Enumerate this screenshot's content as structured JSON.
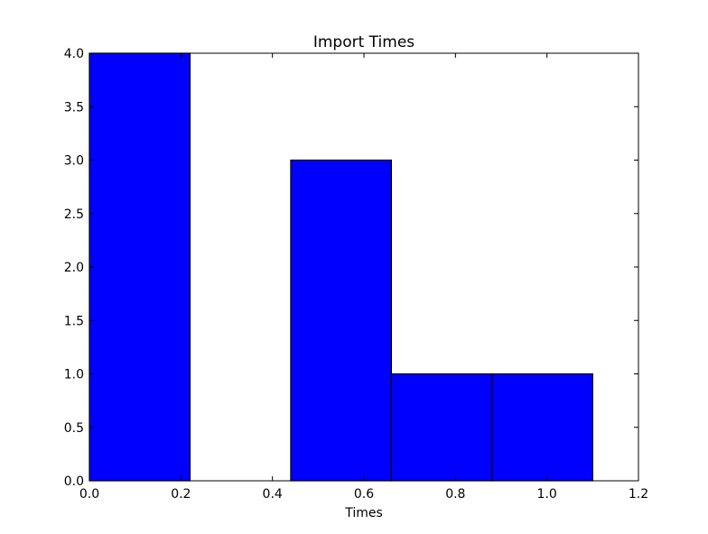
{
  "chart_data": {
    "type": "bar",
    "title": "Import Times",
    "xlabel": "Times",
    "ylabel": "",
    "xlim": [
      0.0,
      1.2
    ],
    "ylim": [
      0.0,
      4.0
    ],
    "bins": [
      {
        "x0": 0.0,
        "x1": 0.22,
        "value": 4
      },
      {
        "x0": 0.22,
        "x1": 0.44,
        "value": 0
      },
      {
        "x0": 0.44,
        "x1": 0.66,
        "value": 3
      },
      {
        "x0": 0.66,
        "x1": 0.88,
        "value": 1
      },
      {
        "x0": 0.88,
        "x1": 1.1,
        "value": 1
      }
    ],
    "xticks": [
      "0.0",
      "0.2",
      "0.4",
      "0.6",
      "0.8",
      "1.0",
      "1.2"
    ],
    "yticks": [
      "0.0",
      "0.5",
      "1.0",
      "1.5",
      "2.0",
      "2.5",
      "3.0",
      "3.5",
      "4.0"
    ],
    "bar_color": "#0000ff",
    "edge_color": "#000000",
    "grid": false,
    "legend": "none"
  }
}
